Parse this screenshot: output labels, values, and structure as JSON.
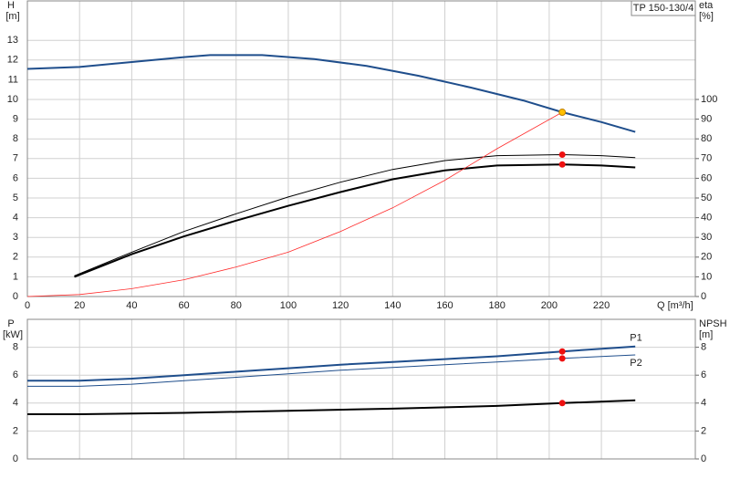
{
  "chart_data": [
    {
      "type": "line",
      "title": "TP 150-130/4",
      "ylabel": [
        "H",
        "[m]"
      ],
      "y2label": [
        "eta",
        "[%]"
      ],
      "xlabel": "Q [m³/h]",
      "xlim": [
        0,
        256
      ],
      "xticks": [
        0,
        20,
        40,
        60,
        80,
        100,
        120,
        140,
        160,
        180,
        200,
        220
      ],
      "ylim": [
        0,
        15
      ],
      "yticks": [
        0,
        1,
        2,
        3,
        4,
        5,
        6,
        7,
        8,
        9,
        10,
        11,
        12,
        13
      ],
      "y2lim": [
        0,
        150
      ],
      "y2ticks": [
        0,
        10,
        20,
        30,
        40,
        50,
        60,
        70,
        80,
        90,
        100
      ],
      "grid": true,
      "series": [
        {
          "color": "#1f4e8c",
          "line_width": 2,
          "x": [
            0,
            20,
            40,
            60,
            70,
            90,
            110,
            130,
            150,
            170,
            190,
            205,
            220,
            233
          ],
          "values": [
            11.55,
            11.65,
            11.9,
            12.15,
            12.25,
            12.25,
            12.05,
            11.7,
            11.2,
            10.6,
            9.95,
            9.35,
            8.85,
            8.35
          ]
        },
        {
          "color": "#000000",
          "line_width": 1,
          "axis": "y2",
          "x": [
            18,
            40,
            60,
            80,
            100,
            120,
            140,
            160,
            180,
            205,
            220,
            233
          ],
          "values": [
            10.5,
            22.5,
            33,
            42,
            50.5,
            58,
            64.5,
            69,
            71.5,
            72,
            71.5,
            70.5
          ]
        },
        {
          "color": "#000000",
          "line_width": 2,
          "axis": "y2",
          "x": [
            18,
            40,
            60,
            80,
            100,
            120,
            140,
            160,
            180,
            205,
            220,
            233
          ],
          "values": [
            10,
            21.5,
            30.5,
            38.5,
            46,
            53,
            59.5,
            64,
            66.5,
            67,
            66.5,
            65.5
          ]
        },
        {
          "color": "#ff2a2a",
          "line_width": 0.8,
          "x": [
            0,
            20,
            40,
            60,
            80,
            100,
            120,
            140,
            160,
            180,
            205
          ],
          "values": [
            0,
            0.1,
            0.4,
            0.85,
            1.5,
            2.25,
            3.3,
            4.5,
            5.9,
            7.5,
            9.35
          ]
        },
        {
          "color": "#ffc000",
          "marker": true,
          "x": [
            205
          ],
          "values": [
            9.35
          ]
        },
        {
          "color": "#ee1111",
          "marker": true,
          "axis": "y2",
          "x": [
            205,
            205
          ],
          "values": [
            72,
            67
          ]
        }
      ]
    },
    {
      "type": "line",
      "ylabel": [
        "P",
        "[kW]"
      ],
      "y2label": [
        "NPSH",
        "[m]"
      ],
      "xlim": [
        0,
        256
      ],
      "xticks": [
        0,
        20,
        40,
        60,
        80,
        100,
        120,
        140,
        160,
        180,
        200,
        220
      ],
      "ylim": [
        0,
        10
      ],
      "yticks": [
        0,
        2,
        4,
        6,
        8
      ],
      "y2lim": [
        0,
        10
      ],
      "y2ticks": [
        0,
        2,
        4,
        6,
        8
      ],
      "grid": true,
      "series": [
        {
          "name": "P1",
          "color": "#1f4e8c",
          "line_width": 2,
          "x": [
            0,
            20,
            40,
            60,
            80,
            100,
            120,
            140,
            160,
            180,
            205,
            233
          ],
          "values": [
            5.6,
            5.6,
            5.75,
            6.0,
            6.25,
            6.5,
            6.75,
            6.95,
            7.15,
            7.35,
            7.7,
            8.05
          ]
        },
        {
          "name": "P2",
          "color": "#1f4e8c",
          "line_width": 1,
          "x": [
            0,
            20,
            40,
            60,
            80,
            100,
            120,
            140,
            160,
            180,
            205,
            233
          ],
          "values": [
            5.2,
            5.2,
            5.35,
            5.6,
            5.85,
            6.1,
            6.35,
            6.55,
            6.75,
            6.95,
            7.2,
            7.45
          ]
        },
        {
          "color": "#000000",
          "line_width": 2,
          "axis": "y2",
          "x": [
            0,
            20,
            60,
            100,
            140,
            180,
            205,
            233
          ],
          "values": [
            3.2,
            3.2,
            3.3,
            3.45,
            3.6,
            3.8,
            4.0,
            4.2
          ]
        },
        {
          "color": "#ee1111",
          "marker": true,
          "x": [
            205,
            205
          ],
          "values": [
            7.7,
            7.2
          ]
        },
        {
          "color": "#ee1111",
          "marker": true,
          "axis": "y2",
          "x": [
            205
          ],
          "values": [
            4.0
          ]
        }
      ]
    }
  ]
}
